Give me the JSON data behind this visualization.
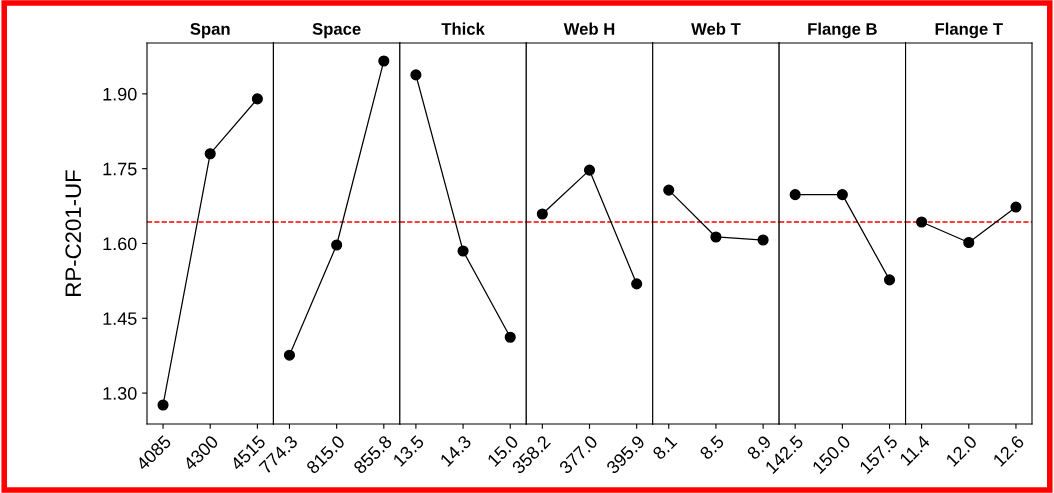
{
  "chart_data": [
    {
      "type": "line",
      "title": "Span",
      "ylabel": "RP-C201-UF",
      "categories": [
        "4085",
        "4300",
        "4515"
      ],
      "values": [
        1.276,
        1.78,
        1.89
      ],
      "color": "#000000",
      "marker": "circle",
      "ylim": [
        1.238,
        2.002
      ],
      "yticks": [
        {
          "value": 1.3,
          "label": "1.30"
        },
        {
          "value": 1.45,
          "label": "1.45"
        },
        {
          "value": 1.6,
          "label": "1.60"
        },
        {
          "value": 1.75,
          "label": "1.75"
        },
        {
          "value": 1.9,
          "label": "1.90"
        }
      ],
      "ref_lines": [
        {
          "axis": "y",
          "value": 1.643,
          "color": "#ff0000",
          "line_style": "dashed"
        }
      ]
    },
    {
      "type": "line",
      "title": "Space",
      "categories": [
        "774.3",
        "815.0",
        "855.8"
      ],
      "values": [
        1.376,
        1.597,
        1.966
      ],
      "color": "#000000",
      "marker": "circle",
      "ylim": [
        1.238,
        2.002
      ],
      "tick_labels": "x",
      "ref_lines": [
        {
          "axis": "y",
          "value": 1.643,
          "color": "#ff0000",
          "line_style": "dashed"
        }
      ]
    },
    {
      "type": "line",
      "title": "Thick",
      "categories": [
        "13.5",
        "14.3",
        "15.0"
      ],
      "values": [
        1.938,
        1.585,
        1.412
      ],
      "color": "#000000",
      "marker": "circle",
      "ylim": [
        1.238,
        2.002
      ],
      "tick_labels": "x",
      "ref_lines": [
        {
          "axis": "y",
          "value": 1.643,
          "color": "#ff0000",
          "line_style": "dashed"
        }
      ]
    },
    {
      "type": "line",
      "title": "Web H",
      "categories": [
        "358.2",
        "377.0",
        "395.9"
      ],
      "values": [
        1.659,
        1.747,
        1.519
      ],
      "color": "#000000",
      "marker": "circle",
      "ylim": [
        1.238,
        2.002
      ],
      "tick_labels": "x",
      "ref_lines": [
        {
          "axis": "y",
          "value": 1.643,
          "color": "#ff0000",
          "line_style": "dashed"
        }
      ]
    },
    {
      "type": "line",
      "title": "Web T",
      "categories": [
        "8.1",
        "8.5",
        "8.9"
      ],
      "values": [
        1.707,
        1.613,
        1.607
      ],
      "color": "#000000",
      "marker": "circle",
      "ylim": [
        1.238,
        2.002
      ],
      "tick_labels": "x",
      "ref_lines": [
        {
          "axis": "y",
          "value": 1.643,
          "color": "#ff0000",
          "line_style": "dashed"
        }
      ]
    },
    {
      "type": "line",
      "title": "Flange B",
      "categories": [
        "142.5",
        "150.0",
        "157.5"
      ],
      "values": [
        1.698,
        1.698,
        1.527
      ],
      "color": "#000000",
      "marker": "circle",
      "ylim": [
        1.238,
        2.002
      ],
      "tick_labels": "x",
      "ref_lines": [
        {
          "axis": "y",
          "value": 1.643,
          "color": "#ff0000",
          "line_style": "dashed"
        }
      ]
    },
    {
      "type": "line",
      "title": "Flange T",
      "categories": [
        "11.4",
        "12.0",
        "12.6"
      ],
      "values": [
        1.643,
        1.602,
        1.673
      ],
      "color": "#000000",
      "marker": "circle",
      "ylim": [
        1.238,
        2.002
      ],
      "tick_labels": "x",
      "ref_lines": [
        {
          "axis": "y",
          "value": 1.643,
          "color": "#ff0000",
          "line_style": "dashed"
        }
      ]
    }
  ]
}
